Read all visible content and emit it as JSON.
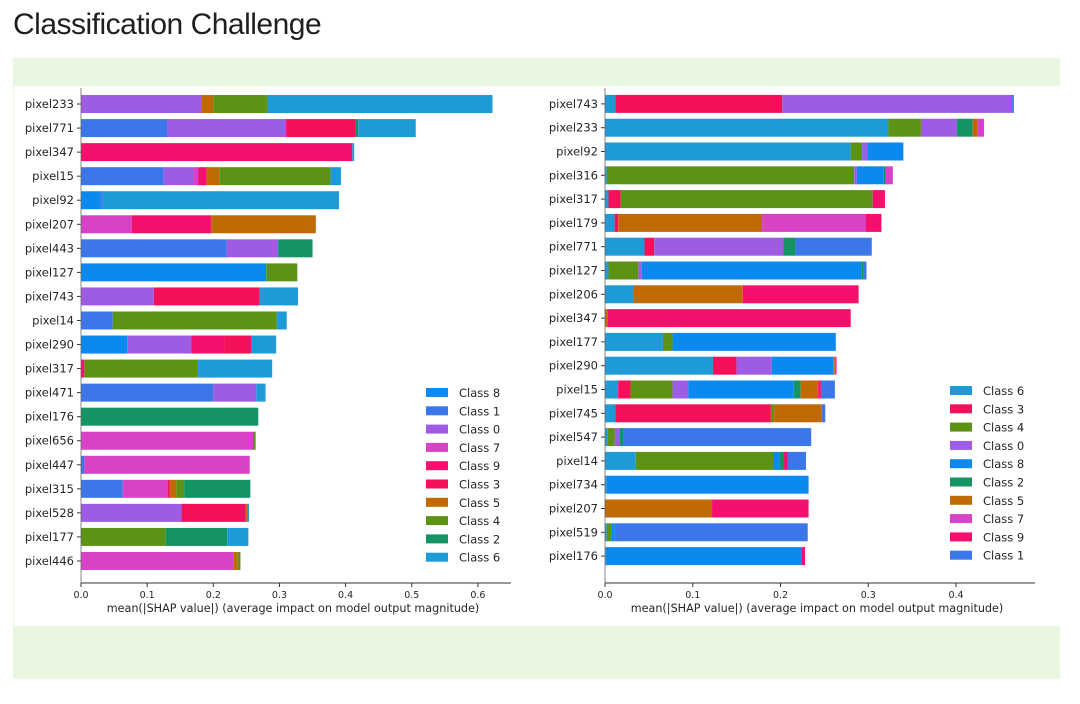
{
  "page": {
    "title": "Classification Challenge"
  },
  "colors": {
    "Class 0": "#9d5ce3",
    "Class 1": "#3b77e8",
    "Class 2": "#149463",
    "Class 3": "#f4115a",
    "Class 4": "#5d9315",
    "Class 5": "#c06a06",
    "Class 6": "#1e9bd6",
    "Class 7": "#d842c6",
    "Class 8": "#0a89f1",
    "Class 9": "#f6106e"
  },
  "chart_data": [
    {
      "type": "bar",
      "orientation": "horizontal-stacked",
      "xlabel": "mean(|SHAP value|) (average impact on model output magnitude)",
      "xlim": [
        0,
        0.65
      ],
      "xticks": [
        "0.0",
        "0.1",
        "0.2",
        "0.3",
        "0.4",
        "0.5",
        "0.6"
      ],
      "legend_position": "bottom-right",
      "legend": [
        "Class 8",
        "Class 1",
        "Class 0",
        "Class 7",
        "Class 9",
        "Class 3",
        "Class 5",
        "Class 4",
        "Class 2",
        "Class 6"
      ],
      "categories": [
        "pixel233",
        "pixel771",
        "pixel347",
        "pixel15",
        "pixel92",
        "pixel207",
        "pixel443",
        "pixel127",
        "pixel743",
        "pixel14",
        "pixel290",
        "pixel317",
        "pixel471",
        "pixel176",
        "pixel656",
        "pixel447",
        "pixel315",
        "pixel528",
        "pixel177",
        "pixel446"
      ],
      "series": [
        {
          "name": "Class 8",
          "values": [
            0,
            0,
            0,
            0,
            0.03,
            0,
            0,
            0.28,
            0,
            0,
            0.07,
            0,
            0,
            0,
            0,
            0,
            0,
            0,
            0,
            0
          ]
        },
        {
          "name": "Class 1",
          "values": [
            0,
            0.13,
            0,
            0.125,
            0.003,
            0,
            0.22,
            0,
            0,
            0.048,
            0,
            0,
            0.2,
            0,
            0,
            0.005,
            0.063,
            0,
            0,
            0
          ]
        },
        {
          "name": "Class 0",
          "values": [
            0.182,
            0.18,
            0,
            0.045,
            0,
            0,
            0.078,
            0,
            0.11,
            0,
            0.097,
            0,
            0.065,
            0,
            0,
            0,
            0,
            0.152,
            0,
            0
          ]
        },
        {
          "name": "Class 7",
          "values": [
            0,
            0,
            0,
            0.007,
            0,
            0.077,
            0,
            0,
            0,
            0,
            0,
            0,
            0,
            0,
            0.26,
            0.25,
            0.068,
            0,
            0,
            0.23
          ]
        },
        {
          "name": "Class 9",
          "values": [
            0,
            0,
            0.41,
            0.013,
            0,
            0.12,
            0,
            0,
            0,
            0,
            0.05,
            0.005,
            0,
            0,
            0,
            0,
            0,
            0,
            0,
            0
          ]
        },
        {
          "name": "Class 3",
          "values": [
            0,
            0.105,
            0,
            0,
            0,
            0,
            0,
            0,
            0.16,
            0,
            0.04,
            0,
            0,
            0,
            0,
            0,
            0.003,
            0.097,
            0,
            0
          ]
        },
        {
          "name": "Class 5",
          "values": [
            0.018,
            0,
            0,
            0.019,
            0,
            0.158,
            0,
            0,
            0,
            0,
            0,
            0,
            0,
            0,
            0,
            0,
            0.01,
            0.002,
            0,
            0.007
          ]
        },
        {
          "name": "Class 4",
          "values": [
            0.082,
            0,
            0,
            0.168,
            0,
            0,
            0,
            0.047,
            0,
            0.248,
            0,
            0.172,
            0,
            0,
            0.004,
            0,
            0.012,
            0,
            0.128,
            0.004
          ]
        },
        {
          "name": "Class 2",
          "values": [
            0,
            0.004,
            0,
            0,
            0,
            0,
            0.052,
            0,
            0,
            0,
            0,
            0,
            0,
            0.268,
            0,
            0,
            0.1,
            0,
            0.093,
            0
          ]
        },
        {
          "name": "Class 6",
          "values": [
            0.34,
            0.087,
            0.003,
            0.016,
            0.357,
            0,
            0,
            0,
            0.058,
            0.015,
            0.038,
            0.112,
            0.014,
            0,
            0,
            0,
            0,
            0.003,
            0.032,
            0
          ]
        }
      ]
    },
    {
      "type": "bar",
      "orientation": "horizontal-stacked",
      "xlabel": "mean(|SHAP value|) (average impact on model output magnitude)",
      "xlim": [
        0,
        0.49
      ],
      "xticks": [
        "0.0",
        "0.1",
        "0.2",
        "0.3",
        "0.4"
      ],
      "legend_position": "bottom-right",
      "legend": [
        "Class 6",
        "Class 3",
        "Class 4",
        "Class 0",
        "Class 8",
        "Class 2",
        "Class 5",
        "Class 7",
        "Class 9",
        "Class 1"
      ],
      "categories": [
        "pixel743",
        "pixel233",
        "pixel92",
        "pixel316",
        "pixel317",
        "pixel179",
        "pixel771",
        "pixel127",
        "pixel206",
        "pixel347",
        "pixel177",
        "pixel290",
        "pixel15",
        "pixel745",
        "pixel547",
        "pixel14",
        "pixel734",
        "pixel207",
        "pixel519",
        "pixel176"
      ],
      "series": [
        {
          "name": "Class 6",
          "values": [
            0.012,
            0.323,
            0.28,
            0.002,
            0.004,
            0.011,
            0.045,
            0.004,
            0.033,
            0,
            0.066,
            0.123,
            0.015,
            0.012,
            0.003,
            0.035,
            0.002,
            0,
            0.002,
            0.001
          ]
        },
        {
          "name": "Class 3",
          "values": [
            0.19,
            0,
            0,
            0,
            0.014,
            0.004,
            0.011,
            0,
            0,
            0,
            0,
            0.027,
            0.014,
            0.177,
            0,
            0,
            0,
            0,
            0,
            0
          ]
        },
        {
          "name": "Class 4",
          "values": [
            0,
            0.037,
            0.013,
            0.282,
            0.287,
            0,
            0,
            0.034,
            0,
            0,
            0.011,
            0,
            0.048,
            0.004,
            0.008,
            0.157,
            0,
            0,
            0.005,
            0
          ]
        },
        {
          "name": "Class 0",
          "values": [
            0.262,
            0.041,
            0.006,
            0.003,
            0,
            0,
            0.147,
            0.004,
            0,
            0,
            0,
            0.04,
            0.018,
            0,
            0.006,
            0,
            0,
            0,
            0,
            0
          ]
        },
        {
          "name": "Class 8",
          "values": [
            0,
            0,
            0.041,
            0.03,
            0,
            0,
            0,
            0.25,
            0,
            0,
            0.186,
            0.07,
            0.12,
            0,
            0,
            0.007,
            0.23,
            0,
            0.004,
            0.223
          ]
        },
        {
          "name": "Class 2",
          "values": [
            0,
            0.018,
            0,
            0.003,
            0,
            0,
            0.014,
            0.003,
            0,
            0,
            0,
            0,
            0.008,
            0,
            0.004,
            0.005,
            0,
            0,
            0,
            0
          ]
        },
        {
          "name": "Class 5",
          "values": [
            0,
            0.005,
            0,
            0,
            0,
            0.164,
            0,
            0,
            0.124,
            0.003,
            0,
            0.002,
            0.02,
            0.054,
            0,
            0,
            0,
            0.122,
            0,
            0
          ]
        },
        {
          "name": "Class 7",
          "values": [
            0,
            0.008,
            0,
            0.008,
            0,
            0.118,
            0,
            0,
            0,
            0,
            0,
            0.002,
            0,
            0,
            0,
            0,
            0,
            0,
            0,
            0
          ]
        },
        {
          "name": "Class 9",
          "values": [
            0,
            0,
            0,
            0,
            0.014,
            0.018,
            0,
            0,
            0.132,
            0.277,
            0,
            0,
            0.003,
            0,
            0,
            0.004,
            0,
            0.11,
            0,
            0.004
          ]
        },
        {
          "name": "Class 1",
          "values": [
            0.002,
            0,
            0,
            0,
            0,
            0,
            0.087,
            0.003,
            0,
            0,
            0,
            0,
            0.016,
            0.004,
            0.214,
            0.021,
            0,
            0,
            0.22,
            0
          ]
        }
      ]
    }
  ]
}
